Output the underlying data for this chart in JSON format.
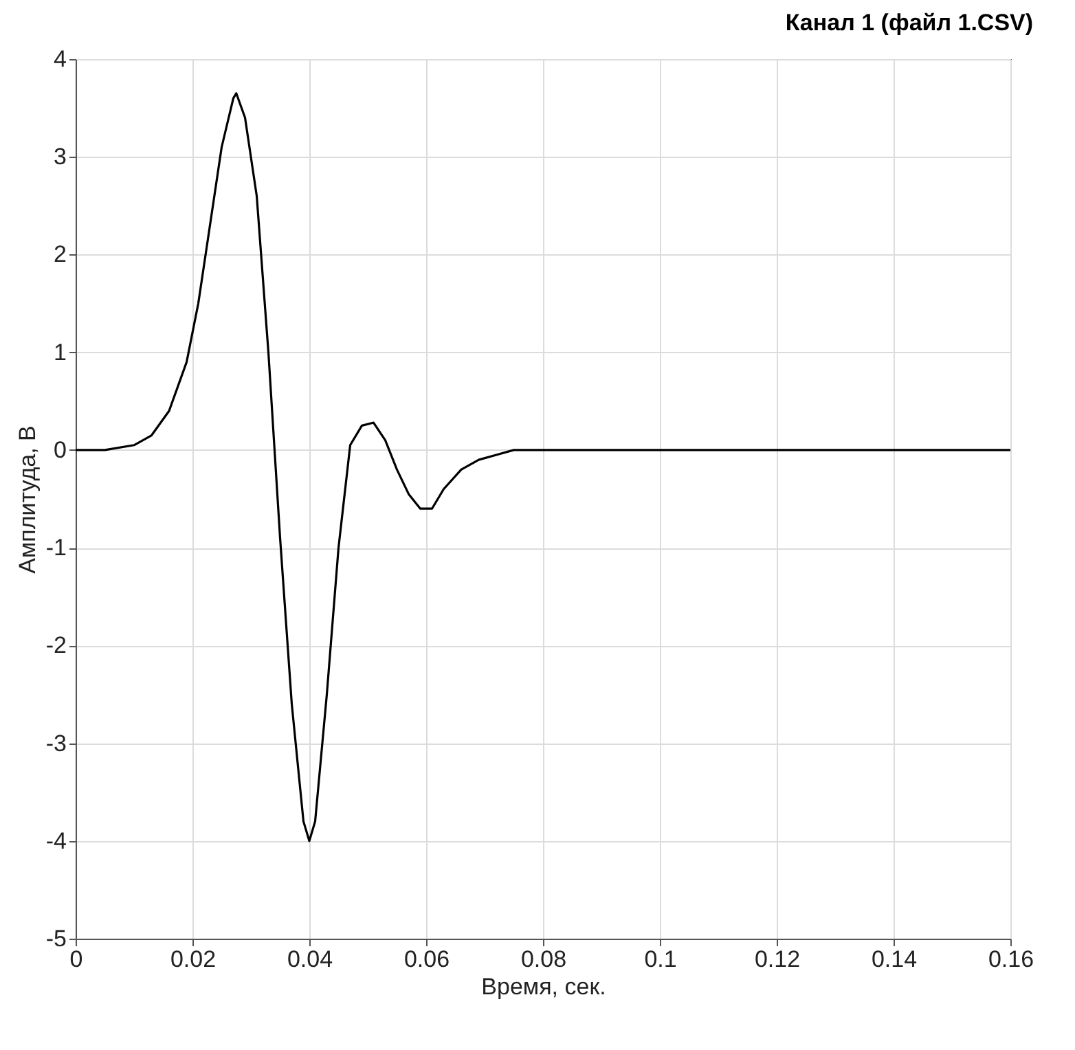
{
  "chart_data": {
    "type": "line",
    "title": "Канал 1  (файл 1.CSV)",
    "xlabel": "Время, сек.",
    "ylabel": "Амплитуда, В",
    "x": [
      0,
      0.005,
      0.01,
      0.013,
      0.016,
      0.019,
      0.021,
      0.023,
      0.025,
      0.027,
      0.0275,
      0.029,
      0.031,
      0.033,
      0.035,
      0.037,
      0.039,
      0.04,
      0.041,
      0.043,
      0.045,
      0.047,
      0.049,
      0.051,
      0.053,
      0.055,
      0.057,
      0.059,
      0.061,
      0.063,
      0.066,
      0.069,
      0.072,
      0.075,
      0.1,
      0.13,
      0.16
    ],
    "series": [
      {
        "color": "#000000",
        "values": [
          0,
          0,
          0.05,
          0.15,
          0.4,
          0.9,
          1.5,
          2.3,
          3.1,
          3.6,
          3.65,
          3.4,
          2.6,
          1.0,
          -0.9,
          -2.6,
          -3.8,
          -4.0,
          -3.8,
          -2.5,
          -1.0,
          0.05,
          0.25,
          0.28,
          0.1,
          -0.2,
          -0.45,
          -0.6,
          -0.6,
          -0.4,
          -0.2,
          -0.1,
          -0.05,
          0,
          0,
          0,
          0
        ]
      }
    ],
    "xlim": [
      0,
      0.16
    ],
    "xticks": [
      0,
      0.02,
      0.04,
      0.06,
      0.08,
      0.1,
      0.12,
      0.14,
      0.16
    ],
    "ylim": [
      -5,
      4
    ],
    "yticks": [
      -5,
      -4,
      -3,
      -2,
      -1,
      0,
      1,
      2,
      3,
      4
    ],
    "grid": true,
    "marker": "none",
    "line_style": "solid"
  }
}
